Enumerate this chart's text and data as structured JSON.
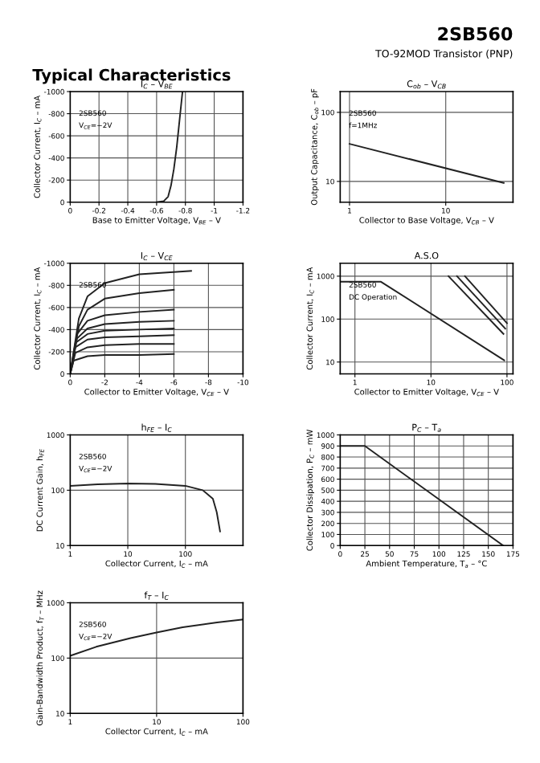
{
  "chart_data": [
    {
      "type": "other",
      "title": "2SB560",
      "subtitle": "TO-92MOD Transistor (PNP)",
      "annotations": [
        "Typical Characteristics"
      ]
    },
    {
      "type": "line",
      "title": "I$_{C}$ – V$_{BE}$",
      "xlabel": "Base to Emitter Voltage, V$_{BE}$ – V",
      "ylabel": "Collector Current, I$_{C}$ – mA",
      "xlim": [
        0,
        -1.2
      ],
      "ylim": [
        0,
        -1000
      ],
      "xticks": [
        0,
        -0.2,
        -0.4,
        -0.6,
        -0.8,
        -1,
        -1.2
      ],
      "yticks": [
        0,
        -200,
        -400,
        -600,
        -800,
        -1000
      ],
      "grid": true,
      "annotations": [
        "2SB560",
        "V$_{CE}$=−2V"
      ],
      "series": [
        {
          "color": "#222222",
          "x": [
            -0.6,
            -0.65,
            -0.68,
            -0.7,
            -0.72,
            -0.74,
            -0.76,
            -0.78
          ],
          "values": [
            0,
            -10,
            -50,
            -150,
            -300,
            -500,
            -750,
            -1000
          ]
        }
      ]
    },
    {
      "type": "line",
      "title": "C$_{ob}$ – V$_{CB}$",
      "xlabel": "Collector to Base Voltage, V$_{CB}$ – V",
      "ylabel": "Output Capacitance, C$_{ob}$ – pF",
      "log": "xy",
      "xlim": [
        0.8,
        50
      ],
      "ylim": [
        5,
        200
      ],
      "xticks": [
        1,
        10
      ],
      "yticks": [
        10,
        100
      ],
      "grid": true,
      "annotations": [
        "2SB560",
        "f=1MHz"
      ],
      "series": [
        {
          "color": "#222222",
          "x": [
            1,
            40
          ],
          "values": [
            35,
            9.5
          ]
        }
      ]
    },
    {
      "type": "line",
      "title": "I$_{C}$ – V$_{CE}$",
      "xlabel": "Collector to Emitter Voltage, V$_{CE}$ – V",
      "ylabel": "Collector Current, I$_{C}$ – mA",
      "xlim": [
        0,
        -10
      ],
      "ylim": [
        0,
        -1000
      ],
      "xticks": [
        0,
        -2,
        -4,
        -6,
        -8,
        -10
      ],
      "yticks": [
        0,
        -200,
        -400,
        -600,
        -800,
        -1000
      ],
      "grid": true,
      "annotations": [
        "2SB560"
      ],
      "series": [
        {
          "color": "#222222",
          "x": [
            0,
            -0.5,
            -1,
            -2,
            -4,
            -7
          ],
          "values": [
            0,
            -500,
            -700,
            -820,
            -900,
            -930
          ]
        },
        {
          "color": "#222222",
          "x": [
            0,
            -0.5,
            -1,
            -2,
            -4,
            -6
          ],
          "values": [
            0,
            -430,
            -580,
            -680,
            -730,
            -760
          ]
        },
        {
          "color": "#222222",
          "x": [
            0,
            -0.4,
            -1,
            -2,
            -4,
            -6
          ],
          "values": [
            0,
            -360,
            -480,
            -530,
            -560,
            -580
          ]
        },
        {
          "color": "#222222",
          "x": [
            0,
            -0.4,
            -1,
            -2,
            -4,
            -6
          ],
          "values": [
            0,
            -320,
            -410,
            -450,
            -470,
            -480
          ]
        },
        {
          "color": "#222222",
          "x": [
            0,
            -0.3,
            -1,
            -2,
            -4,
            -6
          ],
          "values": [
            0,
            -280,
            -360,
            -390,
            -400,
            -410
          ]
        },
        {
          "color": "#222222",
          "x": [
            0,
            -0.3,
            -1,
            -2,
            -4,
            -6
          ],
          "values": [
            0,
            -240,
            -310,
            -330,
            -340,
            -350
          ]
        },
        {
          "color": "#222222",
          "x": [
            0,
            -0.3,
            -1,
            -2,
            -4,
            -6
          ],
          "values": [
            0,
            -190,
            -240,
            -260,
            -270,
            -270
          ]
        },
        {
          "color": "#222222",
          "x": [
            0,
            -0.2,
            -1,
            -2,
            -4,
            -6
          ],
          "values": [
            0,
            -120,
            -160,
            -170,
            -170,
            -180
          ]
        }
      ]
    },
    {
      "type": "line",
      "title": "A.S.O",
      "xlabel": "Collector to Emitter Voltage, V$_{CE}$ – V",
      "ylabel": "Collector Current, I$_{C}$ – mA",
      "log": "xy",
      "xlim": [
        0.64,
        120
      ],
      "ylim": [
        5.3,
        2000
      ],
      "xticks": [
        1,
        10,
        100
      ],
      "yticks": [
        10,
        100,
        1000
      ],
      "grid": true,
      "annotations": [
        "2SB560",
        "DC Operation"
      ],
      "series": [
        {
          "color": "#222222",
          "x": [
            0.64,
            2.2,
            92
          ],
          "values": [
            740,
            740,
            11
          ]
        },
        {
          "color": "#222222",
          "x": [
            17,
            90
          ],
          "values": [
            1000,
            45
          ]
        },
        {
          "color": "#222222",
          "x": [
            22,
            95
          ],
          "values": [
            1000,
            60
          ]
        },
        {
          "color": "#222222",
          "x": [
            28,
            100
          ],
          "values": [
            1000,
            80
          ]
        }
      ]
    },
    {
      "type": "line",
      "title": "h$_{FE}$ – I$_{C}$",
      "xlabel": "Collector Current, I$_{C}$ – mA",
      "ylabel": "DC Current Gain, h$_{FE}$",
      "log": "xy",
      "xlim": [
        1,
        1000
      ],
      "ylim": [
        10,
        1000
      ],
      "xticks": [
        1,
        10,
        100
      ],
      "yticks": [
        10,
        100,
        1000
      ],
      "grid": true,
      "annotations": [
        "2SB560",
        "V$_{CE}$=−2V"
      ],
      "series": [
        {
          "color": "#222222",
          "x": [
            1,
            3,
            10,
            30,
            100,
            200,
            300,
            350,
            400
          ],
          "values": [
            120,
            128,
            132,
            130,
            120,
            100,
            70,
            40,
            18
          ]
        }
      ]
    },
    {
      "type": "line",
      "title": "P$_{C}$ – T$_{a}$",
      "xlabel": "Ambient Temperature, T$_{a}$ – °C",
      "ylabel": "Collector Dissipation, P$_{C}$ – mW",
      "xlim": [
        0,
        175
      ],
      "ylim": [
        0,
        1000
      ],
      "xticks": [
        0,
        25,
        50,
        75,
        100,
        125,
        150,
        175
      ],
      "yticks": [
        0,
        100,
        200,
        300,
        400,
        500,
        600,
        700,
        800,
        900,
        1000
      ],
      "grid": true,
      "series": [
        {
          "color": "#222222",
          "x": [
            0,
            25,
            165
          ],
          "values": [
            900,
            900,
            0
          ]
        }
      ]
    },
    {
      "type": "line",
      "title": "f$_{T}$ – I$_{C}$",
      "xlabel": "Collector Current, I$_{C}$ – mA",
      "ylabel": "Gain-Bandwidth Product, f$_{T}$ – MHz",
      "log": "xy",
      "xlim": [
        1,
        100
      ],
      "ylim": [
        10,
        1000
      ],
      "xticks": [
        1,
        10,
        100
      ],
      "yticks": [
        10,
        100,
        1000
      ],
      "grid": true,
      "annotations": [
        "2SB560",
        "V$_{CE}$=−2V"
      ],
      "series": [
        {
          "color": "#222222",
          "x": [
            1,
            2,
            5,
            10,
            20,
            50,
            100
          ],
          "values": [
            110,
            160,
            230,
            290,
            360,
            440,
            500
          ]
        }
      ]
    }
  ]
}
